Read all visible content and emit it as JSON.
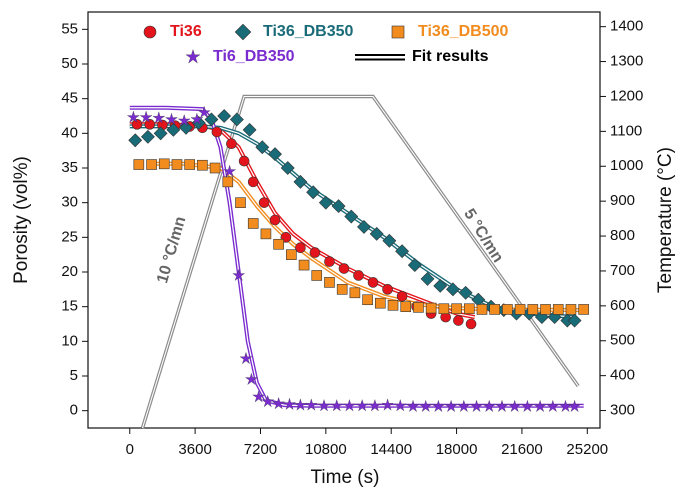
{
  "chart_data": {
    "type": "scatter",
    "xlabel": "Time (s)",
    "ylabel": "Porosity (vol%)",
    "y2label": "Temperature (°C)",
    "xlim": [
      -2300,
      25900
    ],
    "xticks": [
      0,
      3600,
      7200,
      10800,
      14400,
      18000,
      21600,
      25200
    ],
    "ylim": [
      -2.5,
      57.5
    ],
    "yticks": [
      0,
      5,
      10,
      15,
      20,
      25,
      30,
      35,
      40,
      45,
      50,
      55
    ],
    "y2lim": [
      250,
      1442
    ],
    "y2ticks": [
      300,
      400,
      500,
      600,
      700,
      800,
      900,
      1000,
      1100,
      1200,
      1300,
      1400
    ],
    "series": [
      {
        "name": "Ti36",
        "color": "#e3141b",
        "marker": "circle",
        "x": [
          400,
          1100,
          1800,
          2500,
          3300,
          4000,
          4800,
          5600,
          6300,
          6800,
          7400,
          8000,
          8600,
          9400,
          10200,
          11000,
          11800,
          12600,
          13400,
          14200,
          15000,
          15800,
          16600,
          17400,
          18100,
          18800
        ],
        "values": [
          41.3,
          41.3,
          41.2,
          41.1,
          41,
          40.8,
          40.2,
          38.5,
          36,
          33,
          30,
          27.5,
          25,
          23.5,
          22.8,
          21.5,
          20.5,
          19.5,
          18.5,
          17.5,
          16.5,
          15,
          14,
          13.5,
          13,
          12.5
        ]
      },
      {
        "name": "Ti36_DB350",
        "color": "#1a6b78",
        "marker": "diamond",
        "x": [
          300,
          1000,
          1700,
          2400,
          3100,
          3800,
          4500,
          5200,
          5900,
          6600,
          7300,
          8000,
          8700,
          9400,
          10100,
          10800,
          11500,
          12200,
          12900,
          13600,
          14300,
          15000,
          15700,
          16400,
          17100,
          17800,
          18500,
          19200,
          19900,
          20600,
          21300,
          22000,
          22700,
          23400,
          24100,
          24500
        ],
        "values": [
          39,
          39.5,
          40,
          40.5,
          40.8,
          41.5,
          42,
          42.5,
          42,
          40.5,
          38,
          37,
          35,
          33,
          31.5,
          30,
          29.5,
          28,
          26.5,
          25.5,
          24.5,
          23,
          21,
          19,
          18,
          17.5,
          17,
          16,
          15,
          14.5,
          14,
          14,
          13.5,
          13.5,
          13,
          13
        ]
      },
      {
        "name": "Ti36_DB500",
        "color": "#f28c1e",
        "marker": "square",
        "x": [
          500,
          1200,
          1900,
          2600,
          3300,
          4000,
          4700,
          5400,
          6100,
          6800,
          7500,
          8200,
          8900,
          9600,
          10300,
          11000,
          11700,
          12400,
          13100,
          13800,
          14500,
          15200,
          15900,
          16600,
          17300,
          18000,
          18700,
          19400,
          20100,
          20800,
          21500,
          22200,
          22900,
          23600,
          24300,
          25000
        ],
        "values": [
          35.5,
          35.5,
          35.6,
          35.5,
          35.5,
          35.4,
          35,
          33,
          30,
          27,
          25.5,
          24,
          22.5,
          21,
          19.5,
          18.5,
          17.5,
          17,
          16,
          15.5,
          15.2,
          15,
          14.9,
          14.8,
          14.7,
          14.7,
          14.7,
          14.6,
          14.6,
          14.6,
          14.6,
          14.6,
          14.6,
          14.6,
          14.6,
          14.6
        ]
      },
      {
        "name": "Ti6_DB350",
        "color": "#7a2ccf",
        "marker": "star",
        "x": [
          200,
          900,
          1600,
          2300,
          3000,
          3700,
          4100,
          5500,
          6000,
          6400,
          6700,
          7100,
          7600,
          8200,
          8800,
          9400,
          10000,
          10700,
          11400,
          12100,
          12800,
          13500,
          14200,
          14900,
          15600,
          16300,
          17000,
          17700,
          18400,
          19100,
          19800,
          20500,
          21200,
          21900,
          22600,
          23300,
          24000,
          24500
        ],
        "values": [
          42.3,
          42.3,
          42.2,
          42,
          41.8,
          42,
          43,
          34.5,
          19.5,
          7.5,
          4.5,
          2,
          1.3,
          1,
          0.9,
          0.8,
          0.8,
          0.7,
          0.7,
          0.7,
          0.7,
          0.7,
          0.8,
          0.7,
          0.6,
          0.6,
          0.6,
          0.6,
          0.6,
          0.6,
          0.6,
          0.6,
          0.6,
          0.6,
          0.6,
          0.6,
          0.6,
          0.6
        ]
      }
    ],
    "fit_legend": "Fit results",
    "fits": [
      {
        "color": "#e3141b",
        "x": [
          0,
          2000,
          4000,
          5000,
          6000,
          7000,
          8000,
          9000,
          10000,
          12000,
          14000,
          16000,
          18000,
          19000
        ],
        "values": [
          41.3,
          41.3,
          41.1,
          40.5,
          38,
          33,
          28.5,
          25.5,
          23.5,
          20.5,
          18,
          16,
          14,
          13.5
        ]
      },
      {
        "color": "#1a6b78",
        "x": [
          0,
          2000,
          4000,
          5000,
          6000,
          7000,
          8000,
          10000,
          12000,
          14000,
          16000,
          18000,
          20000,
          22000,
          24500
        ],
        "values": [
          41,
          41,
          41,
          40.8,
          40,
          38.5,
          36.5,
          32,
          28.5,
          25,
          21,
          17.5,
          15,
          14,
          13.5
        ]
      },
      {
        "color": "#f28c1e",
        "x": [
          1000,
          3000,
          5000,
          6000,
          7000,
          8000,
          9000,
          10000,
          12000,
          14000,
          16000,
          18000,
          20000,
          25000
        ],
        "values": [
          35.6,
          35.6,
          35,
          33,
          29.5,
          26.5,
          24,
          22,
          18.5,
          16.5,
          15.3,
          14.8,
          14.6,
          14.5
        ]
      },
      {
        "color": "#7a2ccf",
        "x": [
          0,
          2000,
          4000,
          4500,
          5000,
          5500,
          6000,
          6500,
          7000,
          7500,
          8500,
          10000,
          25000
        ],
        "values": [
          43.7,
          43.7,
          43.5,
          42,
          38,
          30,
          20,
          10,
          4,
          1.5,
          0.8,
          0.7,
          0.7
        ]
      }
    ],
    "temperature": {
      "color": "#8c8c8c",
      "axis": "y2",
      "x": [
        700,
        6300,
        13400,
        24700
      ],
      "values": [
        250,
        1200,
        1200,
        370
      ]
    },
    "annotations": [
      "10 °C/mn",
      "5 °C/mn"
    ]
  }
}
